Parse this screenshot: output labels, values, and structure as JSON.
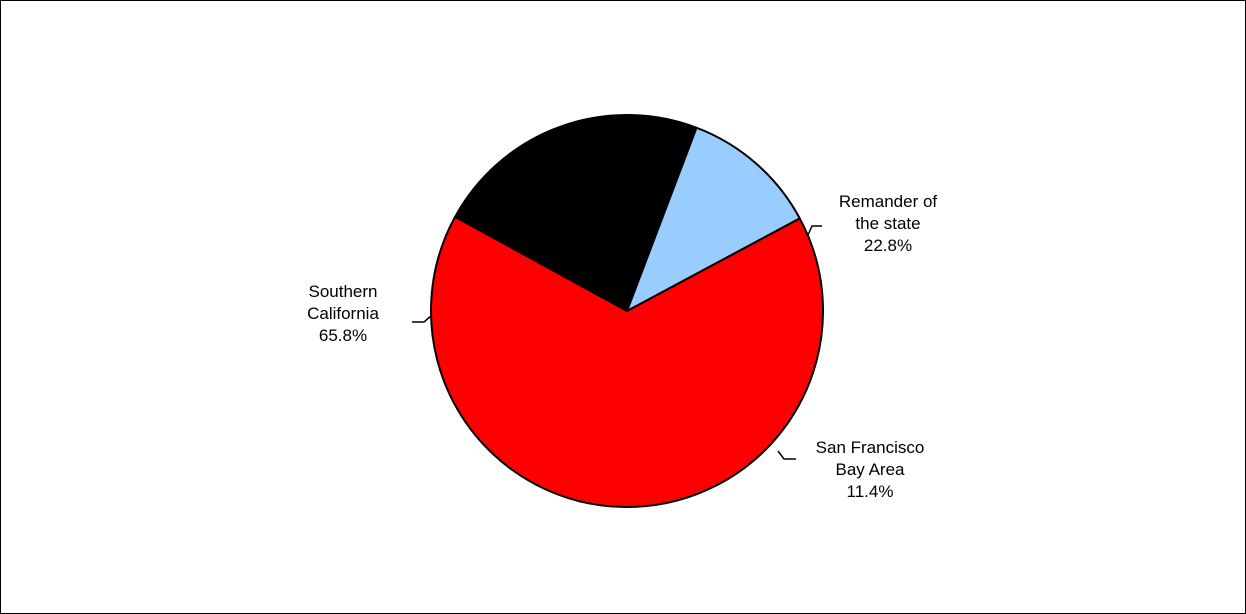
{
  "chart_data": {
    "type": "pie",
    "title": "",
    "slices": [
      {
        "label_lines": [
          "Remander of",
          "the state"
        ],
        "value_label": "22.8%",
        "value": 22.8,
        "color": "#000000"
      },
      {
        "label_lines": [
          "San Francisco",
          "Bay Area"
        ],
        "value_label": "11.4%",
        "value": 11.4,
        "color": "#99CCFF"
      },
      {
        "label_lines": [
          "Southern",
          "California"
        ],
        "value_label": "65.8%",
        "value": 65.8,
        "color": "#FF0000"
      }
    ],
    "legend": "none"
  }
}
